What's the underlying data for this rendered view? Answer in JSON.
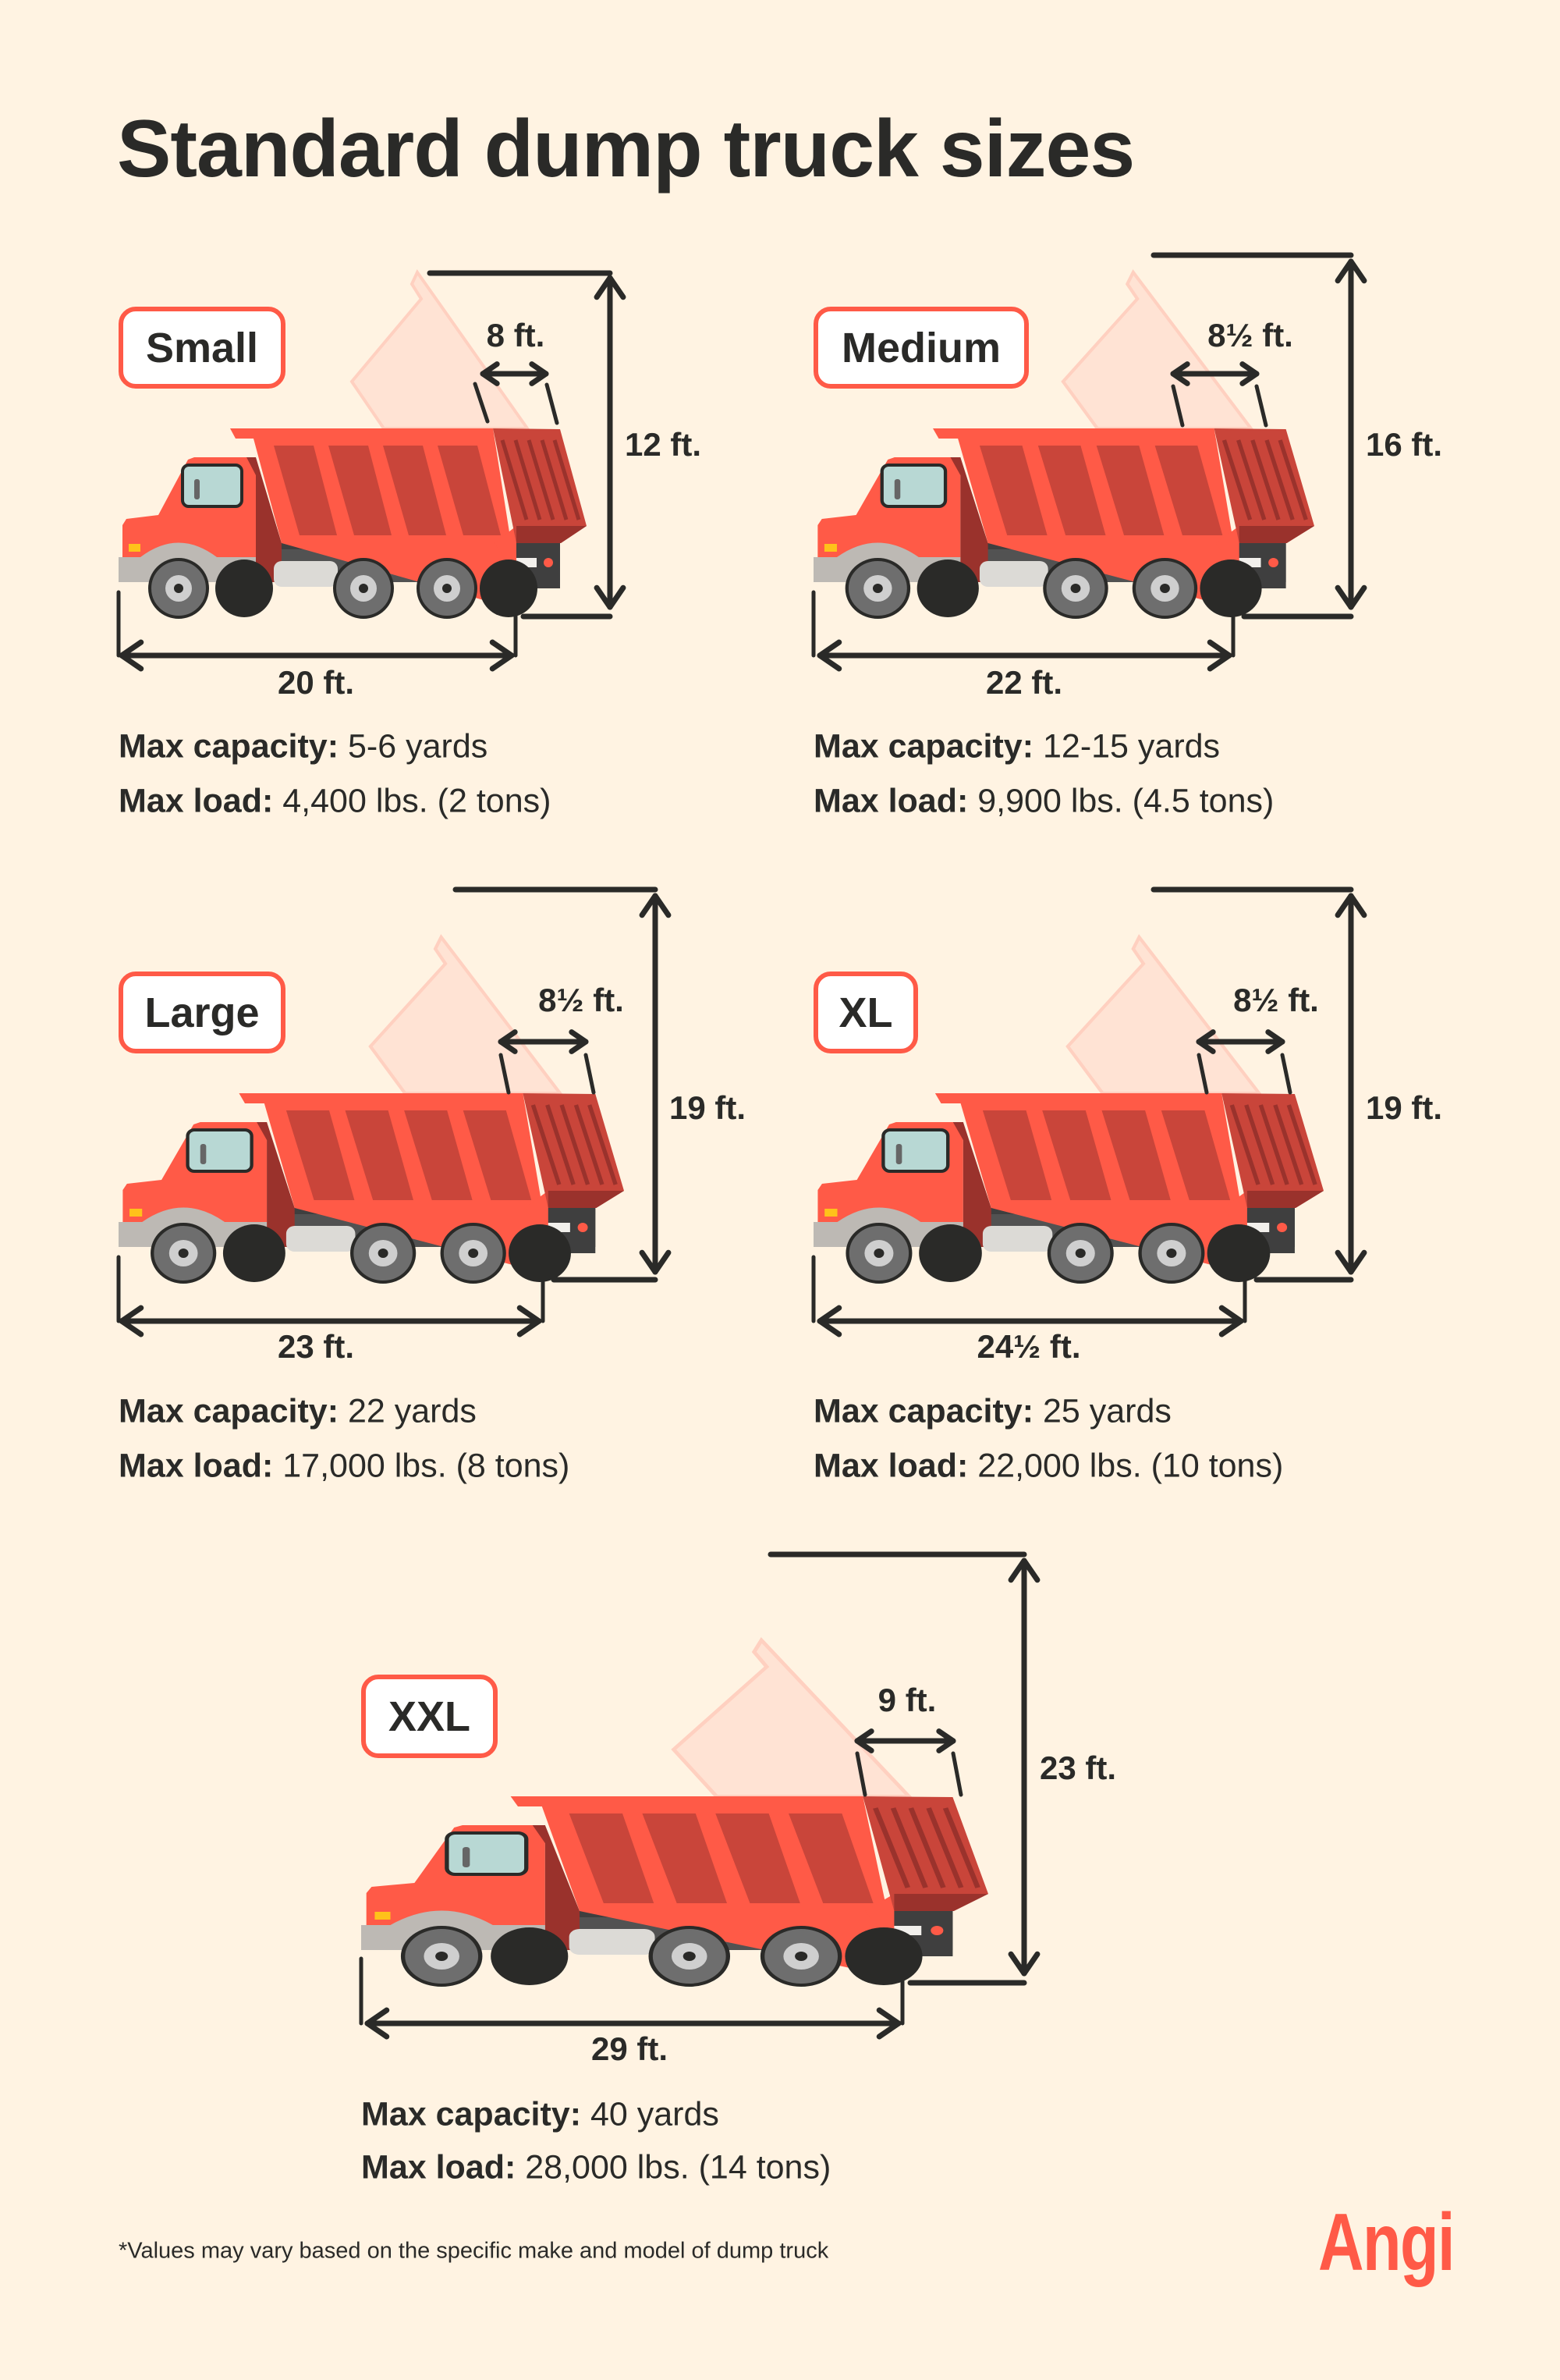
{
  "title": "Standard dump truck sizes",
  "colors": {
    "background": "#FFF3E2",
    "accent": "#FF5A47",
    "text": "#2A2A28",
    "truck_body": "#FF5A47",
    "truck_shadow": "#C9453A",
    "ghost": "#FFE3D4"
  },
  "trucks": [
    {
      "label": "Small",
      "height": "12 ft.",
      "length": "20 ft.",
      "width": "8 ft.",
      "capacity_label": "Max capacity:",
      "capacity": "5-6 yards",
      "load_label": "Max load:",
      "load": "4,400 lbs. (2 tons)"
    },
    {
      "label": "Medium",
      "height": "16 ft.",
      "length": "22 ft.",
      "width": "8½ ft.",
      "capacity_label": "Max capacity:",
      "capacity": "12-15 yards",
      "load_label": "Max load:",
      "load": "9,900 lbs. (4.5 tons)"
    },
    {
      "label": "Large",
      "height": "19 ft.",
      "length": "23 ft.",
      "width": "8½ ft.",
      "capacity_label": "Max capacity:",
      "capacity": "22 yards",
      "load_label": "Max load:",
      "load": "17,000 lbs. (8 tons)"
    },
    {
      "label": "XL",
      "height": "19 ft.",
      "length": "24½ ft.",
      "width": "8½ ft.",
      "capacity_label": "Max capacity:",
      "capacity": "25 yards",
      "load_label": "Max load:",
      "load": "22,000 lbs. (10 tons)"
    },
    {
      "label": "XXL",
      "height": "23 ft.",
      "length": "29 ft.",
      "width": "9 ft.",
      "capacity_label": "Max capacity:",
      "capacity": "40 yards",
      "load_label": "Max load:",
      "load": "28,000 lbs. (14 tons)"
    }
  ],
  "footnote": "*Values may vary based on the specific make and model of dump truck",
  "logo": "Angi"
}
